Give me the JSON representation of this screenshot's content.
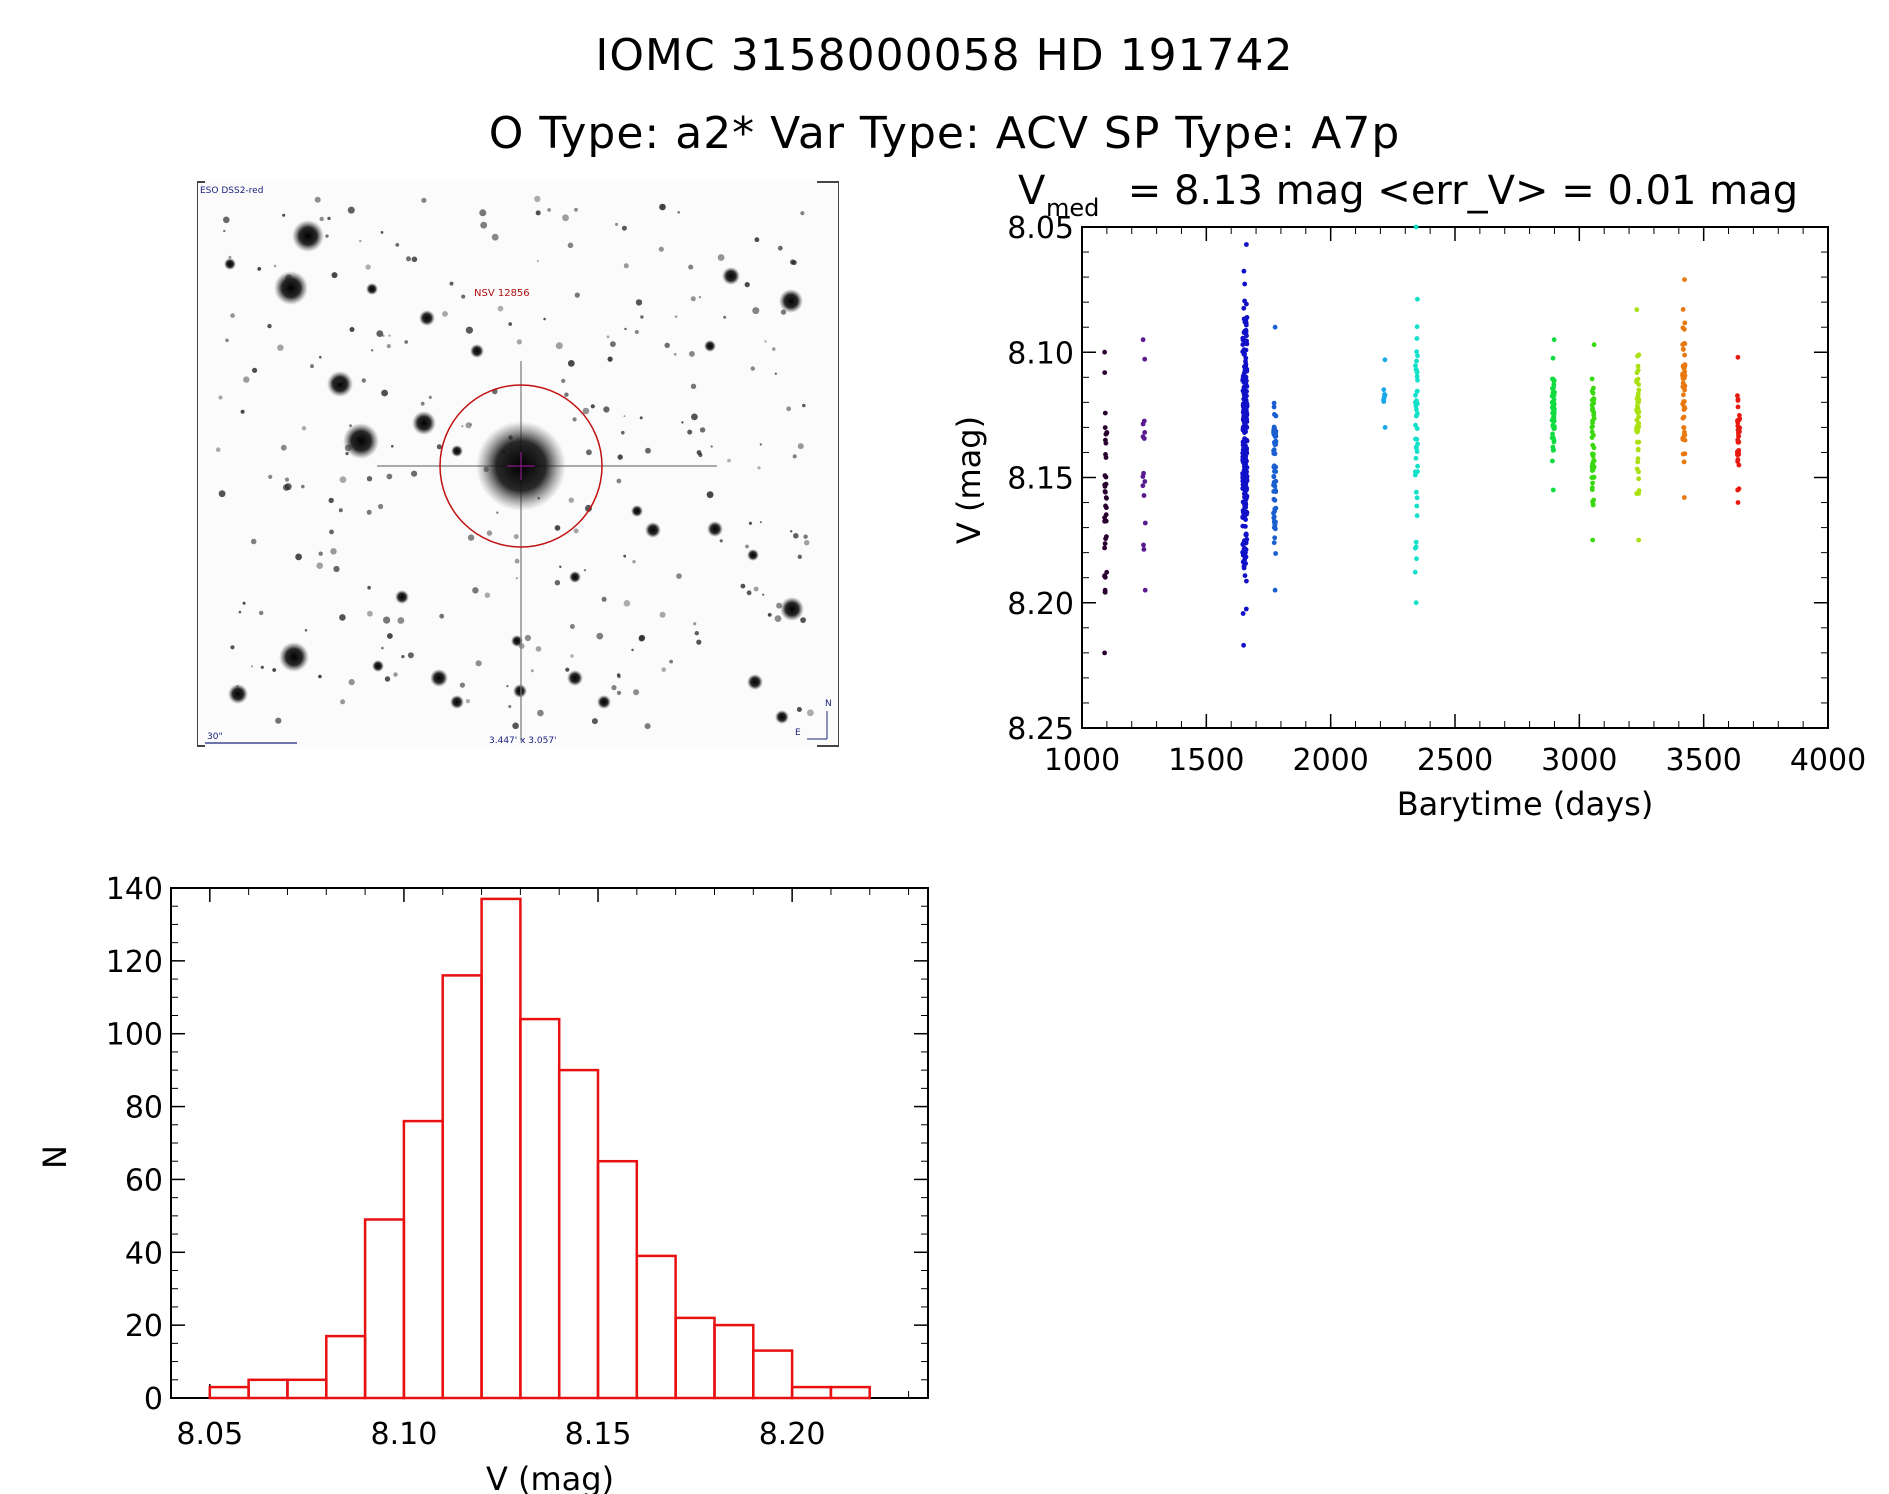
{
  "header": {
    "title_line1": "IOMC 3158000058   HD 191742",
    "title_line2": "O Type: a2*  Var Type: ACV  SP Type: A7p"
  },
  "sky_image": {
    "survey_label": "ESO DSS2-red",
    "target_label": "NSV 12856",
    "scale_label": "30\"",
    "fov_label": "3.447' x 3.057'",
    "north_label": "N",
    "east_label": "E",
    "circle_color": "#c01010",
    "label_color": "#1a237e"
  },
  "chart_data": [
    {
      "type": "scatter",
      "title_prefix": "V",
      "title_subscript": "med",
      "title_suffix": " = 8.13 mag <err_V> = 0.01 mag",
      "xlabel": "Barytime (days)",
      "ylabel": "V (mag)",
      "xlim": [
        1000,
        4000
      ],
      "ylim": [
        8.25,
        8.05
      ],
      "y_inverted": true,
      "xticks": [
        1000,
        1500,
        2000,
        2500,
        3000,
        3500,
        4000
      ],
      "yticks": [
        "8.05",
        "8.10",
        "8.15",
        "8.20",
        "8.25"
      ],
      "grid": false,
      "series": [
        {
          "color": "#2a0030",
          "x_center": 1095,
          "y_min": 8.1,
          "y_max": 8.22,
          "n": 38
        },
        {
          "color": "#5a1a90",
          "x_center": 1250,
          "y_min": 8.095,
          "y_max": 8.195,
          "n": 16
        },
        {
          "color": "#1010c8",
          "x_center": 1655,
          "y_min": 8.057,
          "y_max": 8.217,
          "n": 260
        },
        {
          "color": "#1a5fd0",
          "x_center": 1775,
          "y_min": 8.09,
          "y_max": 8.195,
          "n": 60
        },
        {
          "color": "#19a8e8",
          "x_center": 2215,
          "y_min": 8.103,
          "y_max": 8.13,
          "n": 9
        },
        {
          "color": "#12e0c8",
          "x_center": 2345,
          "y_min": 8.05,
          "y_max": 8.2,
          "n": 48
        },
        {
          "color": "#10dc40",
          "x_center": 2895,
          "y_min": 8.095,
          "y_max": 8.155,
          "n": 55
        },
        {
          "color": "#3ad810",
          "x_center": 3055,
          "y_min": 8.097,
          "y_max": 8.175,
          "n": 50
        },
        {
          "color": "#a8e010",
          "x_center": 3235,
          "y_min": 8.083,
          "y_max": 8.175,
          "n": 55
        },
        {
          "color": "#e87810",
          "x_center": 3420,
          "y_min": 8.071,
          "y_max": 8.158,
          "n": 50
        },
        {
          "color": "#e81a10",
          "x_center": 3640,
          "y_min": 8.102,
          "y_max": 8.16,
          "n": 38
        }
      ]
    },
    {
      "type": "bar",
      "subtype": "histogram",
      "xlabel": "V (mag)",
      "ylabel": "N",
      "xlim": [
        8.04,
        8.235
      ],
      "ylim": [
        0,
        140
      ],
      "xticks": [
        "8.05",
        "8.10",
        "8.15",
        "8.20"
      ],
      "yticks": [
        "0",
        "20",
        "40",
        "60",
        "80",
        "100",
        "120",
        "140"
      ],
      "bin_width": 0.01,
      "bin_starts": [
        8.05,
        8.06,
        8.07,
        8.08,
        8.09,
        8.1,
        8.11,
        8.12,
        8.13,
        8.14,
        8.15,
        8.16,
        8.17,
        8.18,
        8.19,
        8.2,
        8.21
      ],
      "values": [
        3,
        5,
        5,
        17,
        49,
        76,
        116,
        137,
        104,
        90,
        65,
        39,
        22,
        20,
        13,
        3,
        3
      ],
      "bar_color": "#e81010",
      "grid": false
    }
  ]
}
